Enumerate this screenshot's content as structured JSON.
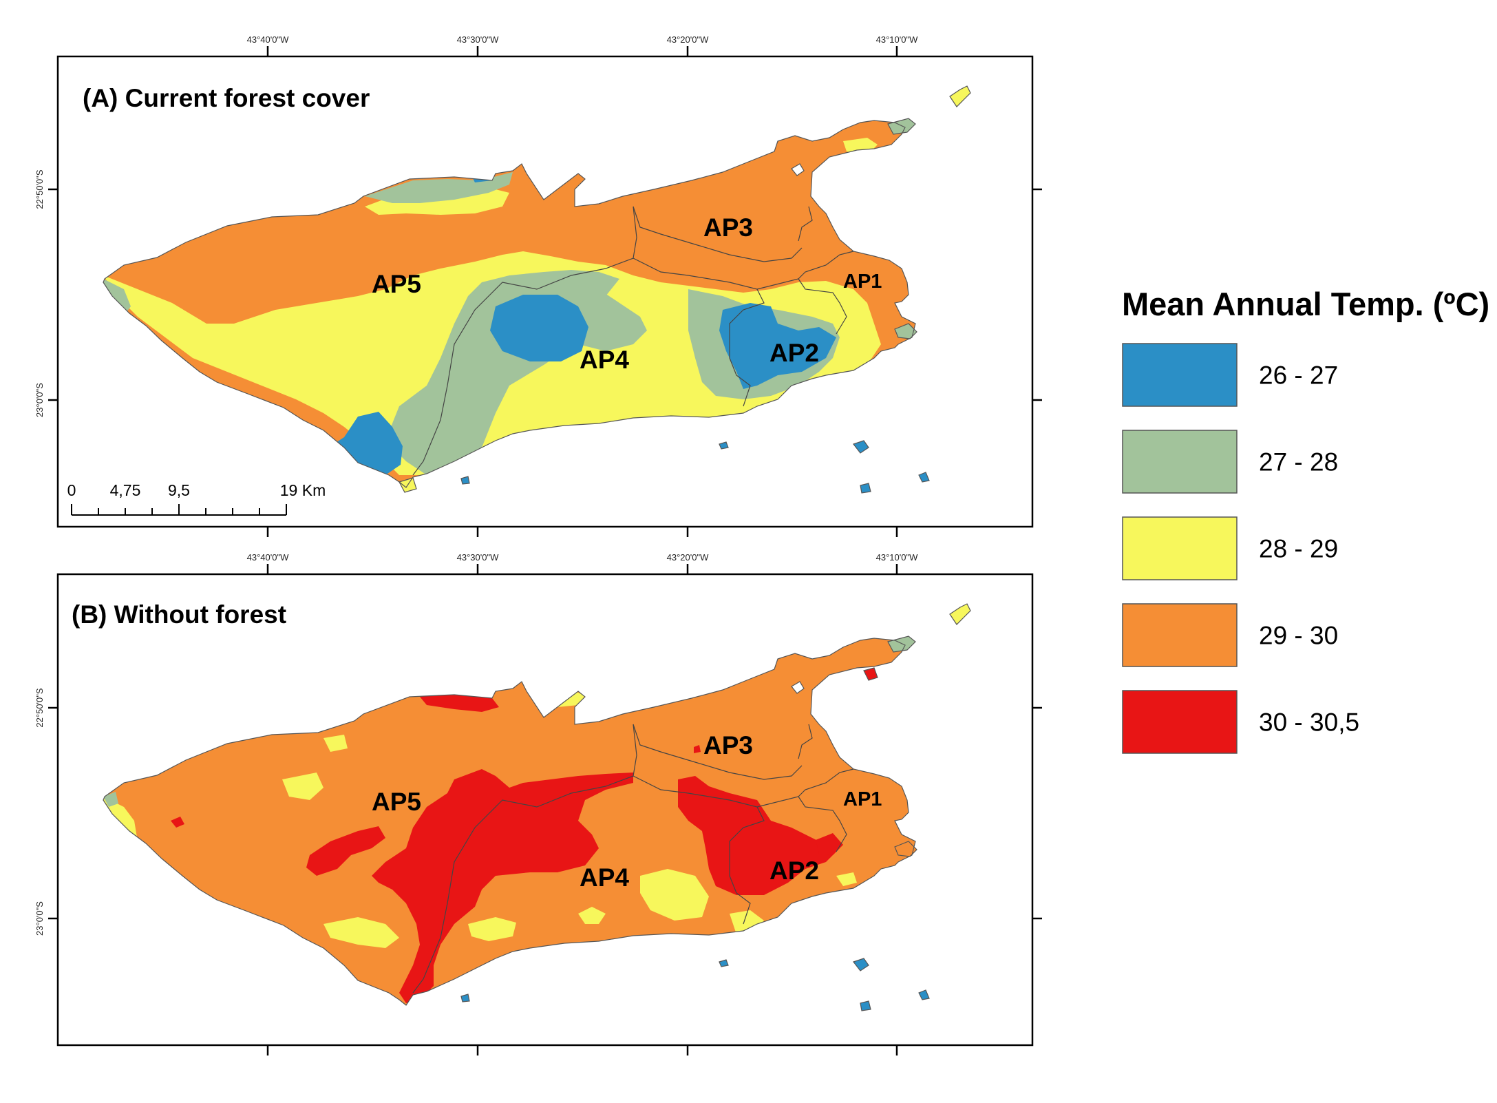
{
  "panels": [
    {
      "id": "A",
      "title": "(A) Current forest cover"
    },
    {
      "id": "B",
      "title": "(B) Without forest"
    }
  ],
  "lon_ticks": [
    "43°40'0\"W",
    "43°30'0\"W",
    "43°20'0\"W",
    "43°10'0\"W"
  ],
  "lat_ticks": [
    "22°50'0\"S",
    "23°0'0\"S"
  ],
  "zones": [
    "AP1",
    "AP2",
    "AP3",
    "AP4",
    "AP5"
  ],
  "scale_bar": {
    "labels": [
      "0",
      "4,75",
      "9,5",
      "19 Km"
    ]
  },
  "legend": {
    "title": "Mean Annual Temp. (ºC)",
    "classes": [
      {
        "label": "26 - 27",
        "color": "#2b8fc6"
      },
      {
        "label": "27 - 28",
        "color": "#a2c39b"
      },
      {
        "label": "28 - 29",
        "color": "#f7f75c"
      },
      {
        "label": "29 - 30",
        "color": "#f58e35"
      },
      {
        "label": "30 - 30,5",
        "color": "#e81515"
      }
    ]
  }
}
